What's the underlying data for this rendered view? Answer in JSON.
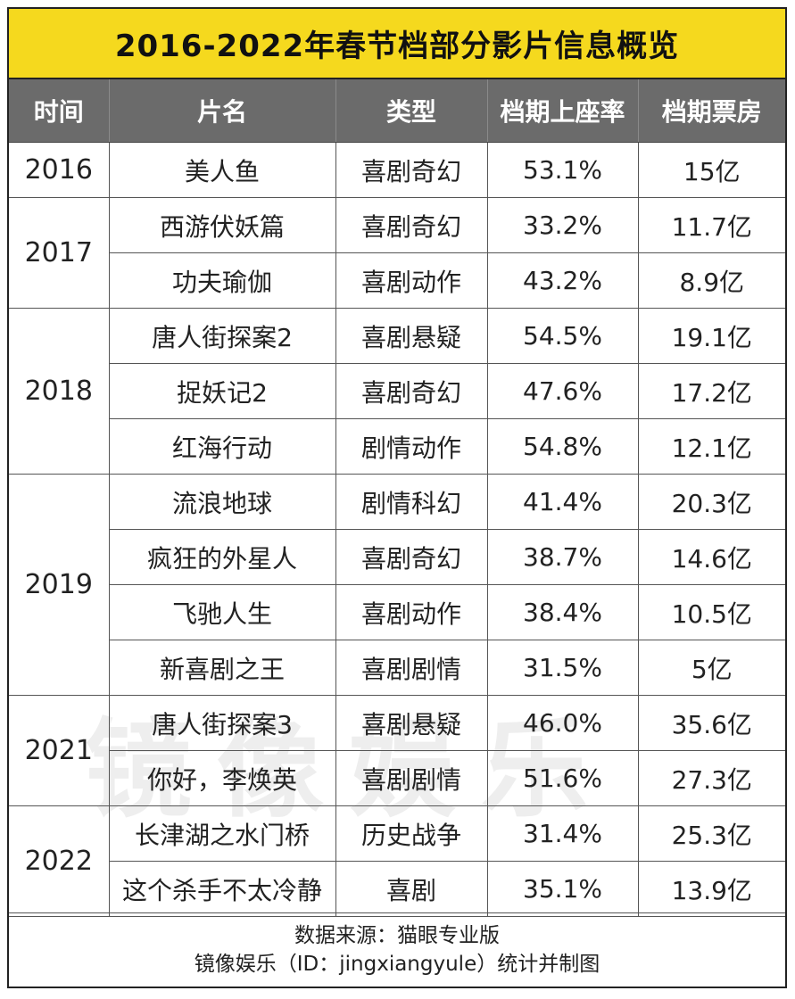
{
  "title": "2016-2022年春节档部分影片信息概览",
  "headers": [
    "时间",
    "片名",
    "类型",
    "档期上座率",
    "档期票房"
  ],
  "groups": [
    {
      "year": "2016",
      "films": [
        {
          "name": "美人鱼",
          "type": "喜剧奇幻",
          "rate": "53.1%",
          "box": "15亿"
        }
      ]
    },
    {
      "year": "2017",
      "films": [
        {
          "name": "西游伏妖篇",
          "type": "喜剧奇幻",
          "rate": "33.2%",
          "box": "11.7亿"
        },
        {
          "name": "功夫瑜伽",
          "type": "喜剧动作",
          "rate": "43.2%",
          "box": "8.9亿"
        }
      ]
    },
    {
      "year": "2018",
      "films": [
        {
          "name": "唐人街探案2",
          "type": "喜剧悬疑",
          "rate": "54.5%",
          "box": "19.1亿"
        },
        {
          "name": "捉妖记2",
          "type": "喜剧奇幻",
          "rate": "47.6%",
          "box": "17.2亿"
        },
        {
          "name": "红海行动",
          "type": "剧情动作",
          "rate": "54.8%",
          "box": "12.1亿"
        }
      ]
    },
    {
      "year": "2019",
      "films": [
        {
          "name": "流浪地球",
          "type": "剧情科幻",
          "rate": "41.4%",
          "box": "20.3亿"
        },
        {
          "name": "疯狂的外星人",
          "type": "喜剧奇幻",
          "rate": "38.7%",
          "box": "14.6亿"
        },
        {
          "name": "飞驰人生",
          "type": "喜剧动作",
          "rate": "38.4%",
          "box": "10.5亿"
        },
        {
          "name": "新喜剧之王",
          "type": "喜剧剧情",
          "rate": "31.5%",
          "box": "5亿"
        }
      ]
    },
    {
      "year": "2021",
      "films": [
        {
          "name": "唐人街探案3",
          "type": "喜剧悬疑",
          "rate": "46.0%",
          "box": "35.6亿"
        },
        {
          "name": "你好，李焕英",
          "type": "喜剧剧情",
          "rate": "51.6%",
          "box": "27.3亿"
        }
      ]
    },
    {
      "year": "2022",
      "films": [
        {
          "name": "长津湖之水门桥",
          "type": "历史战争",
          "rate": "31.4%",
          "box": "25.3亿"
        },
        {
          "name": "这个杀手不太冷静",
          "type": "喜剧",
          "rate": "35.1%",
          "box": "13.9亿"
        }
      ]
    }
  ],
  "footer": {
    "line1": "数据来源：猫眼专业版",
    "line2": "镜像娱乐（ID：jingxiangyule）统计并制图"
  },
  "watermark": "镜像娱乐",
  "colors": {
    "title_bg": "#f5d91e",
    "header_bg": "#6b6b6b",
    "header_text": "#ffffff"
  }
}
